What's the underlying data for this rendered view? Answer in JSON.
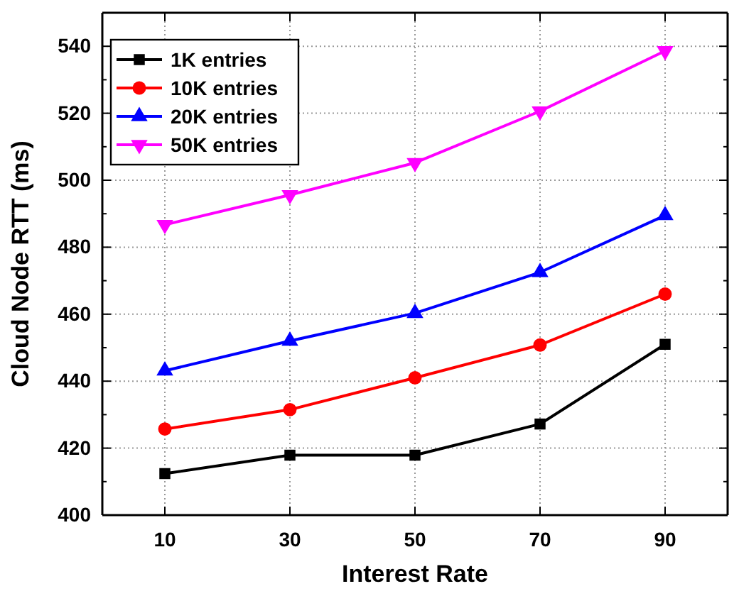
{
  "chart_data": {
    "type": "line",
    "xlabel": "Interest Rate",
    "ylabel": "Cloud Node RTT (ms)",
    "x": [
      10,
      30,
      50,
      70,
      90
    ],
    "series": [
      {
        "name": "1K entries",
        "color": "#000000",
        "marker": "square",
        "values": [
          412.4,
          417.9,
          417.9,
          427.2,
          451
        ]
      },
      {
        "name": "10K entries",
        "color": "#ff0000",
        "marker": "circle",
        "values": [
          425.7,
          431.5,
          441,
          450.8,
          466
        ]
      },
      {
        "name": "20K entries",
        "color": "#0000ff",
        "marker": "triangle",
        "values": [
          443.1,
          452,
          460.3,
          472.5,
          489.5
        ]
      },
      {
        "name": "50K entries",
        "color": "#ff00ff",
        "marker": "triangle-down",
        "values": [
          486.7,
          495.6,
          505.2,
          520.6,
          538.6
        ]
      }
    ],
    "xlim": [
      0,
      100
    ],
    "xticks": [
      10,
      30,
      50,
      70,
      90
    ],
    "ylim": [
      400,
      550
    ],
    "yticks": [
      400,
      {
        "value": 410,
        "label": null
      },
      420,
      {
        "value": 430,
        "label": null
      },
      440,
      {
        "value": 450,
        "label": null
      },
      460,
      {
        "value": 470,
        "label": null
      },
      480,
      {
        "value": 490,
        "label": null
      },
      500,
      {
        "value": 510,
        "label": null
      },
      520,
      {
        "value": 530,
        "label": null
      },
      540,
      {
        "value": 550,
        "label": null
      }
    ],
    "grid": true,
    "legend": "top left",
    "line_style": "solid"
  }
}
